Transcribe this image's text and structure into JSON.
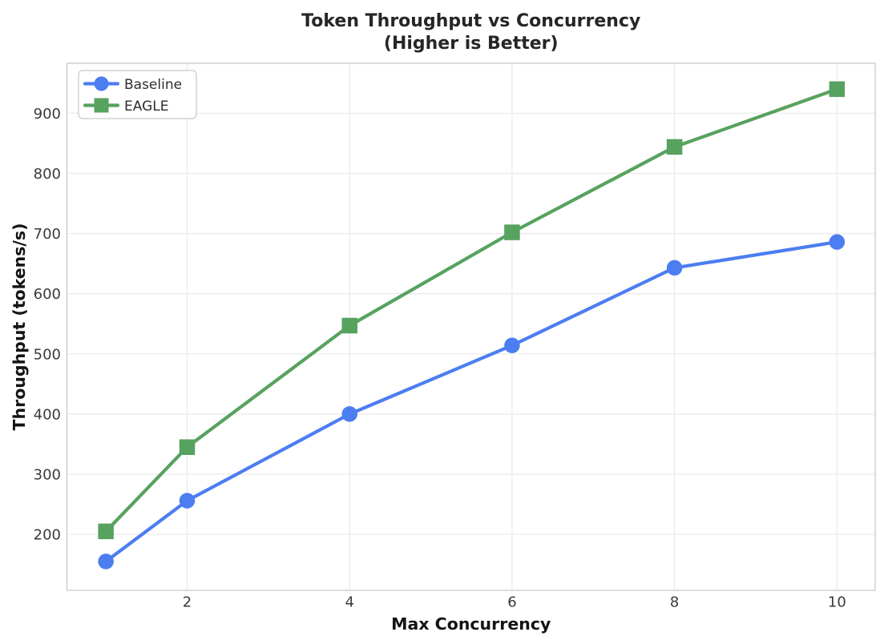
{
  "chart_data": {
    "type": "line",
    "title": "Token Throughput vs Concurrency",
    "subtitle": "(Higher is Better)",
    "xlabel": "Max Concurrency",
    "ylabel": "Throughput (tokens/s)",
    "x": [
      1,
      2,
      4,
      6,
      8,
      10
    ],
    "series": [
      {
        "name": "Baseline",
        "values": [
          155,
          256,
          400,
          514,
          643,
          686
        ],
        "color": "#4c7df1",
        "marker": "circle"
      },
      {
        "name": "EAGLE",
        "values": [
          205,
          345,
          547,
          702,
          844,
          940
        ],
        "color": "#57a25f",
        "marker": "square"
      }
    ],
    "xticks": [
      2,
      4,
      6,
      8,
      10
    ],
    "yticks": [
      200,
      300,
      400,
      500,
      600,
      700,
      800,
      900
    ],
    "xlim": [
      0.52,
      10.47
    ],
    "ylim": [
      107,
      983
    ],
    "grid": true,
    "legend_position": "upper-left"
  },
  "style": {
    "background": "#ffffff",
    "grid_color": "#ebebeb",
    "spine_color": "#cccccc",
    "title_color": "#262626",
    "tick_color": "#3a3a3a",
    "label_color": "#141414",
    "legend_border": "#d2d2d2",
    "legend_fill": "#ffffff",
    "legend_text": "#2e2e2e"
  }
}
